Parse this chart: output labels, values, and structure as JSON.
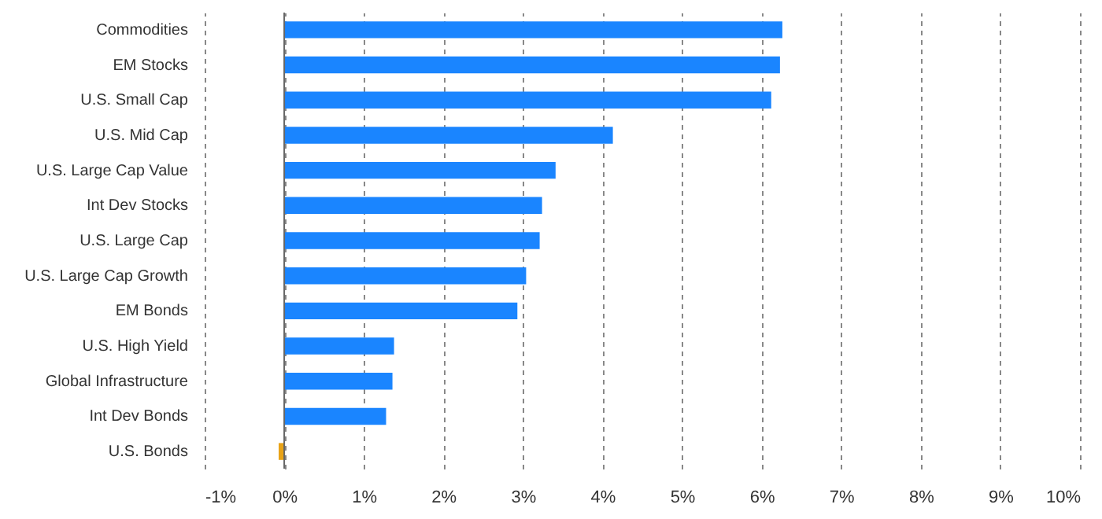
{
  "chart_data": {
    "type": "bar",
    "orientation": "horizontal",
    "categories": [
      "Commodities",
      "EM Stocks",
      "U.S. Small Cap",
      "U.S. Mid Cap",
      "U.S. Large Cap Value",
      "Int Dev Stocks",
      "U.S. Large Cap",
      "U.S. Large Cap Growth",
      "EM Bonds",
      "U.S. High Yield",
      "Global Infrastructure",
      "Int Dev Bonds",
      "U.S. Bonds"
    ],
    "values": [
      6.26,
      6.23,
      6.12,
      4.13,
      3.41,
      3.24,
      3.21,
      3.04,
      2.93,
      1.38,
      1.36,
      1.28,
      -0.07
    ],
    "colors": [
      "#1a85ff",
      "#1a85ff",
      "#1a85ff",
      "#1a85ff",
      "#1a85ff",
      "#1a85ff",
      "#1a85ff",
      "#1a85ff",
      "#1a85ff",
      "#1a85ff",
      "#1a85ff",
      "#1a85ff",
      "#e8a317"
    ],
    "xlim": [
      -1,
      10
    ],
    "xticks": [
      {
        "value": -1,
        "label": "-1%"
      },
      {
        "value": 0,
        "label": "0%"
      },
      {
        "value": 1,
        "label": "1%"
      },
      {
        "value": 2,
        "label": "2%"
      },
      {
        "value": 3,
        "label": "3%"
      },
      {
        "value": 4,
        "label": "4%"
      },
      {
        "value": 5,
        "label": "5%"
      },
      {
        "value": 6,
        "label": "6%"
      },
      {
        "value": 7,
        "label": "7%"
      },
      {
        "value": 8,
        "label": "8%"
      },
      {
        "value": 9,
        "label": "9%"
      },
      {
        "value": 10,
        "label": "10%"
      }
    ],
    "grid": "x",
    "ref_lines": [
      {
        "axis": "x",
        "value": 0,
        "color": "#666666"
      }
    ]
  }
}
